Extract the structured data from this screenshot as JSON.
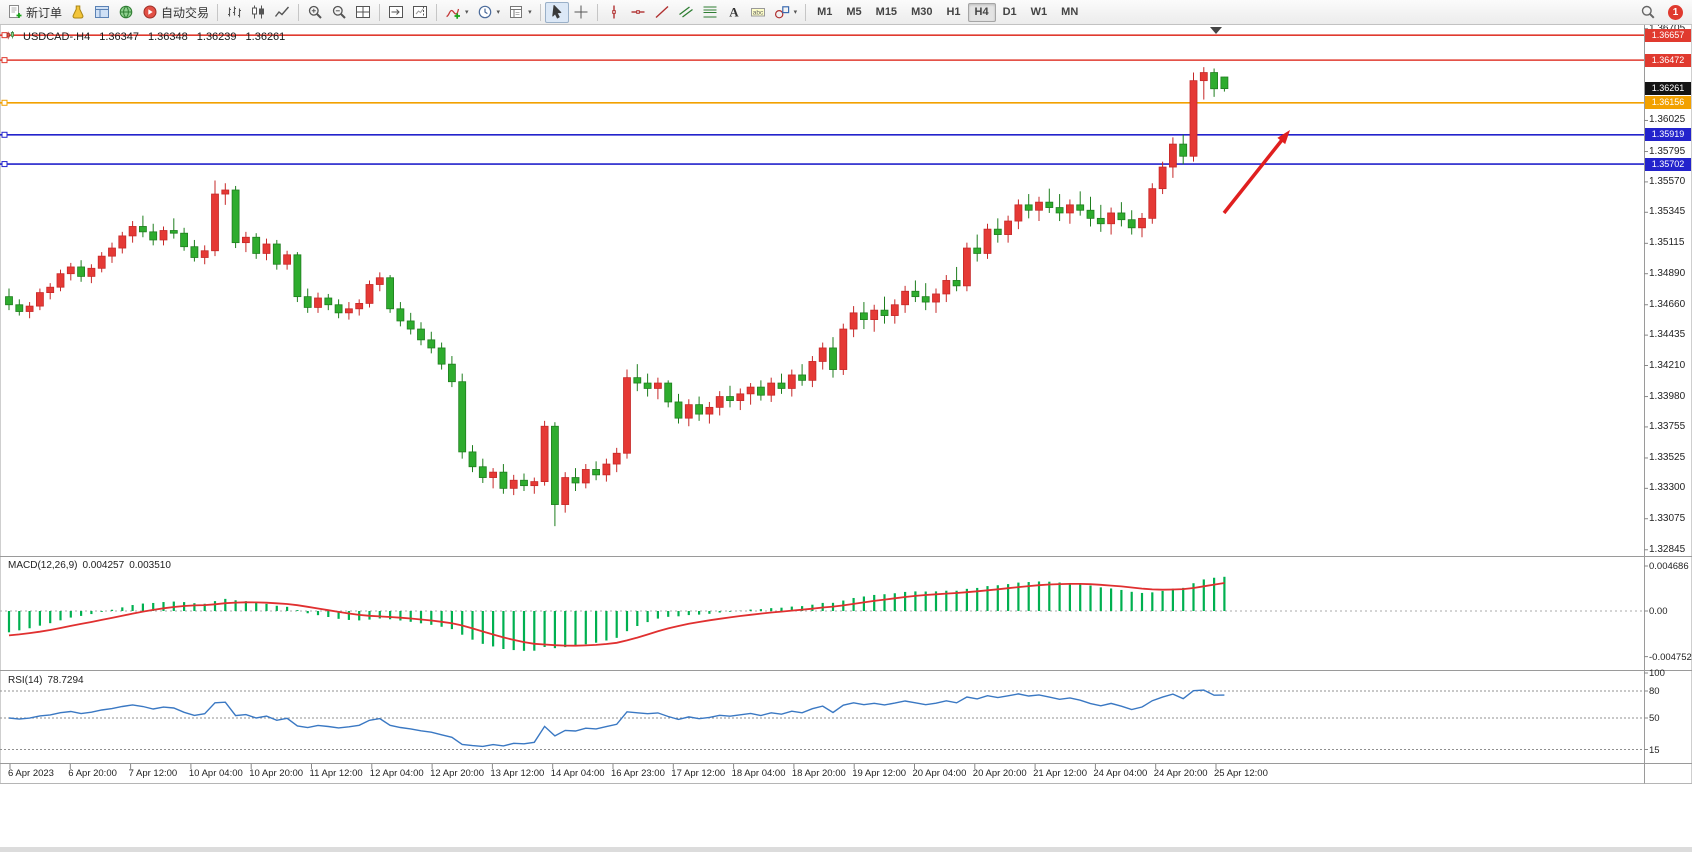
{
  "toolbar": {
    "groups": [
      [
        {
          "name": "new-order-button",
          "icon": "doc-plus",
          "label": "新订单"
        },
        {
          "name": "market-watch-button",
          "icon": "flask"
        },
        {
          "name": "data-window-button",
          "icon": "panel"
        },
        {
          "name": "navigator-button",
          "icon": "globe"
        },
        {
          "name": "autotrading-button",
          "icon": "autotrade",
          "label": "自动交易"
        }
      ],
      [
        {
          "name": "bar-chart-button",
          "icon": "bars"
        },
        {
          "name": "candlestick-chart-button",
          "icon": "candles"
        },
        {
          "name": "line-chart-button",
          "icon": "linechart"
        }
      ],
      [
        {
          "name": "zoom-in-button",
          "icon": "zoom-in"
        },
        {
          "name": "zoom-out-button",
          "icon": "zoom-out"
        },
        {
          "name": "tile-windows-button",
          "icon": "tile"
        }
      ],
      [
        {
          "name": "auto-scroll-button",
          "icon": "autoscroll"
        },
        {
          "name": "chart-shift-button",
          "icon": "chartshift"
        }
      ],
      [
        {
          "name": "indicators-button",
          "icon": "indicator",
          "caret": true
        },
        {
          "name": "periods-button",
          "icon": "clock",
          "caret": true
        },
        {
          "name": "templates-button",
          "icon": "template",
          "caret": true
        }
      ],
      [
        {
          "name": "cursor-button",
          "icon": "cursor",
          "active": true
        },
        {
          "name": "crosshair-button",
          "icon": "crosshair"
        }
      ],
      [
        {
          "name": "vertical-line-button",
          "icon": "vline"
        },
        {
          "name": "horizontal-line-button",
          "icon": "hline"
        },
        {
          "name": "trendline-button",
          "icon": "trendline"
        },
        {
          "name": "channel-button",
          "icon": "channel"
        },
        {
          "name": "fibonacci-button",
          "icon": "fibo"
        },
        {
          "name": "text-button",
          "icon": "text"
        },
        {
          "name": "label-button",
          "icon": "textlabel"
        },
        {
          "name": "arrows-button",
          "icon": "shapes",
          "caret": true
        }
      ]
    ],
    "timeframes": [
      {
        "label": "M1"
      },
      {
        "label": "M5"
      },
      {
        "label": "M15"
      },
      {
        "label": "M30"
      },
      {
        "label": "H1"
      },
      {
        "label": "H4",
        "active": true
      },
      {
        "label": "D1"
      },
      {
        "label": "W1"
      },
      {
        "label": "MN"
      }
    ],
    "right": {
      "notification_count": "1"
    }
  },
  "chart": {
    "symbol_timeframe": "USDCAD-.H4",
    "ohlc": {
      "open": "1.36347",
      "high": "1.36348",
      "low": "1.36239",
      "close": "1.36261"
    },
    "current_price": {
      "label": "1.36261",
      "color": "#141414"
    },
    "levels": [
      {
        "price": 1.36657,
        "label": "1.36657",
        "color": "#e03a2f"
      },
      {
        "price": 1.36472,
        "label": "1.36472",
        "color": "#e03a2f"
      },
      {
        "price": 1.36156,
        "label": "1.36156",
        "color": "#f2a100"
      },
      {
        "price": 1.35919,
        "label": "1.35919",
        "color": "#2323cc"
      },
      {
        "price": 1.35702,
        "label": "1.35702",
        "color": "#2323cc"
      }
    ],
    "axis_prices": [
      "1.36705",
      "1.36025",
      "1.35795",
      "1.35570",
      "1.35345",
      "1.35115",
      "1.34890",
      "1.34660",
      "1.34435",
      "1.34210",
      "1.33980",
      "1.33755",
      "1.33525",
      "1.33300",
      "1.33075",
      "1.32845"
    ],
    "time_labels": [
      "6 Apr 2023",
      "6 Apr 20:00",
      "7 Apr 12:00",
      "10 Apr 04:00",
      "10 Apr 20:00",
      "11 Apr 12:00",
      "12 Apr 04:00",
      "12 Apr 20:00",
      "13 Apr 12:00",
      "14 Apr 04:00",
      "16 Apr 23:00",
      "17 Apr 12:00",
      "18 Apr 04:00",
      "18 Apr 20:00",
      "19 Apr 12:00",
      "20 Apr 04:00",
      "20 Apr 20:00",
      "21 Apr 12:00",
      "24 Apr 04:00",
      "24 Apr 20:00",
      "25 Apr 12:00"
    ],
    "annotation_arrow_color": "#e01f1f"
  },
  "chart_data": {
    "type": "candlestick",
    "symbol": "USDCAD",
    "timeframe": "H4",
    "bull_color": "#e53935",
    "bull_edge": "#c62828",
    "bear_color": "#2eac2e",
    "bear_edge": "#1e7e1e",
    "candles": [
      [
        1.3472,
        1.3478,
        1.3462,
        1.3466
      ],
      [
        1.3466,
        1.347,
        1.3458,
        1.3461
      ],
      [
        1.3461,
        1.3468,
        1.3456,
        1.3465
      ],
      [
        1.3465,
        1.3478,
        1.3462,
        1.3475
      ],
      [
        1.3475,
        1.3482,
        1.347,
        1.3479
      ],
      [
        1.3479,
        1.3492,
        1.3476,
        1.3489
      ],
      [
        1.3489,
        1.3497,
        1.3484,
        1.3494
      ],
      [
        1.3494,
        1.3499,
        1.3483,
        1.3487
      ],
      [
        1.3487,
        1.3496,
        1.3482,
        1.3493
      ],
      [
        1.3493,
        1.3505,
        1.349,
        1.3502
      ],
      [
        1.3502,
        1.3512,
        1.3497,
        1.3508
      ],
      [
        1.3508,
        1.352,
        1.3504,
        1.3517
      ],
      [
        1.3517,
        1.3528,
        1.3512,
        1.3524
      ],
      [
        1.3524,
        1.3532,
        1.3516,
        1.352
      ],
      [
        1.352,
        1.3526,
        1.351,
        1.3514
      ],
      [
        1.3514,
        1.3524,
        1.351,
        1.3521
      ],
      [
        1.3521,
        1.353,
        1.3515,
        1.3519
      ],
      [
        1.3519,
        1.3523,
        1.3506,
        1.3509
      ],
      [
        1.3509,
        1.3514,
        1.3498,
        1.3501
      ],
      [
        1.3501,
        1.351,
        1.3496,
        1.3506
      ],
      [
        1.3506,
        1.3558,
        1.3502,
        1.3548
      ],
      [
        1.3548,
        1.3556,
        1.354,
        1.3551
      ],
      [
        1.3551,
        1.3554,
        1.3508,
        1.3512
      ],
      [
        1.3512,
        1.352,
        1.3505,
        1.3516
      ],
      [
        1.3516,
        1.3519,
        1.35,
        1.3504
      ],
      [
        1.3504,
        1.3515,
        1.3499,
        1.3511
      ],
      [
        1.3511,
        1.3514,
        1.3492,
        1.3496
      ],
      [
        1.3496,
        1.3506,
        1.3492,
        1.3503
      ],
      [
        1.3503,
        1.3505,
        1.3468,
        1.3472
      ],
      [
        1.3472,
        1.3478,
        1.346,
        1.3464
      ],
      [
        1.3464,
        1.3475,
        1.346,
        1.3471
      ],
      [
        1.3471,
        1.3474,
        1.3462,
        1.3466
      ],
      [
        1.3466,
        1.347,
        1.3456,
        1.346
      ],
      [
        1.346,
        1.3468,
        1.3455,
        1.3463
      ],
      [
        1.3463,
        1.347,
        1.3458,
        1.3467
      ],
      [
        1.3467,
        1.3484,
        1.3464,
        1.3481
      ],
      [
        1.3481,
        1.349,
        1.3476,
        1.3486
      ],
      [
        1.3486,
        1.3488,
        1.346,
        1.3463
      ],
      [
        1.3463,
        1.3468,
        1.345,
        1.3454
      ],
      [
        1.3454,
        1.346,
        1.3444,
        1.3448
      ],
      [
        1.3448,
        1.3453,
        1.3436,
        1.344
      ],
      [
        1.344,
        1.3446,
        1.343,
        1.3434
      ],
      [
        1.3434,
        1.3438,
        1.3418,
        1.3422
      ],
      [
        1.3422,
        1.3428,
        1.3405,
        1.3409
      ],
      [
        1.3409,
        1.3415,
        1.3352,
        1.3357
      ],
      [
        1.3357,
        1.3362,
        1.3342,
        1.3346
      ],
      [
        1.3346,
        1.3352,
        1.3334,
        1.3338
      ],
      [
        1.3338,
        1.3345,
        1.333,
        1.3342
      ],
      [
        1.3342,
        1.3348,
        1.3326,
        1.333
      ],
      [
        1.333,
        1.334,
        1.3325,
        1.3336
      ],
      [
        1.3336,
        1.3341,
        1.3328,
        1.3332
      ],
      [
        1.3332,
        1.3338,
        1.3326,
        1.3335
      ],
      [
        1.3335,
        1.338,
        1.3332,
        1.3376
      ],
      [
        1.3376,
        1.3379,
        1.3302,
        1.3318
      ],
      [
        1.3318,
        1.3342,
        1.3312,
        1.3338
      ],
      [
        1.3338,
        1.3345,
        1.3328,
        1.3334
      ],
      [
        1.3334,
        1.3348,
        1.333,
        1.3344
      ],
      [
        1.3344,
        1.335,
        1.3336,
        1.334
      ],
      [
        1.334,
        1.3352,
        1.3335,
        1.3348
      ],
      [
        1.3348,
        1.336,
        1.3342,
        1.3356
      ],
      [
        1.3356,
        1.3418,
        1.3352,
        1.3412
      ],
      [
        1.3412,
        1.3422,
        1.3402,
        1.3408
      ],
      [
        1.3408,
        1.3415,
        1.3398,
        1.3404
      ],
      [
        1.3404,
        1.3412,
        1.3396,
        1.3408
      ],
      [
        1.3408,
        1.341,
        1.339,
        1.3394
      ],
      [
        1.3394,
        1.34,
        1.3378,
        1.3382
      ],
      [
        1.3382,
        1.3396,
        1.3376,
        1.3392
      ],
      [
        1.3392,
        1.3398,
        1.338,
        1.3385
      ],
      [
        1.3385,
        1.3394,
        1.3378,
        1.339
      ],
      [
        1.339,
        1.3402,
        1.3384,
        1.3398
      ],
      [
        1.3398,
        1.3406,
        1.339,
        1.3395
      ],
      [
        1.3395,
        1.3404,
        1.3388,
        1.34
      ],
      [
        1.34,
        1.3408,
        1.3392,
        1.3405
      ],
      [
        1.3405,
        1.341,
        1.3395,
        1.3399
      ],
      [
        1.3399,
        1.3412,
        1.3394,
        1.3408
      ],
      [
        1.3408,
        1.3415,
        1.34,
        1.3404
      ],
      [
        1.3404,
        1.3418,
        1.3398,
        1.3414
      ],
      [
        1.3414,
        1.3422,
        1.3406,
        1.341
      ],
      [
        1.341,
        1.3428,
        1.3405,
        1.3424
      ],
      [
        1.3424,
        1.3438,
        1.3418,
        1.3434
      ],
      [
        1.3434,
        1.3442,
        1.3412,
        1.3418
      ],
      [
        1.3418,
        1.3452,
        1.3414,
        1.3448
      ],
      [
        1.3448,
        1.3465,
        1.3442,
        1.346
      ],
      [
        1.346,
        1.3468,
        1.3448,
        1.3455
      ],
      [
        1.3455,
        1.3466,
        1.3446,
        1.3462
      ],
      [
        1.3462,
        1.3472,
        1.3452,
        1.3458
      ],
      [
        1.3458,
        1.347,
        1.3452,
        1.3466
      ],
      [
        1.3466,
        1.348,
        1.346,
        1.3476
      ],
      [
        1.3476,
        1.3484,
        1.3468,
        1.3472
      ],
      [
        1.3472,
        1.3482,
        1.3462,
        1.3468
      ],
      [
        1.3468,
        1.3478,
        1.346,
        1.3474
      ],
      [
        1.3474,
        1.3488,
        1.3468,
        1.3484
      ],
      [
        1.3484,
        1.3494,
        1.3476,
        1.348
      ],
      [
        1.348,
        1.3512,
        1.3476,
        1.3508
      ],
      [
        1.3508,
        1.3518,
        1.3498,
        1.3504
      ],
      [
        1.3504,
        1.3526,
        1.35,
        1.3522
      ],
      [
        1.3522,
        1.353,
        1.3512,
        1.3518
      ],
      [
        1.3518,
        1.3532,
        1.3512,
        1.3528
      ],
      [
        1.3528,
        1.3544,
        1.3522,
        1.354
      ],
      [
        1.354,
        1.3548,
        1.353,
        1.3536
      ],
      [
        1.3536,
        1.3546,
        1.3528,
        1.3542
      ],
      [
        1.3542,
        1.3552,
        1.3534,
        1.3538
      ],
      [
        1.3538,
        1.3548,
        1.3528,
        1.3534
      ],
      [
        1.3534,
        1.3544,
        1.3526,
        1.354
      ],
      [
        1.354,
        1.355,
        1.3532,
        1.3536
      ],
      [
        1.3536,
        1.3546,
        1.3524,
        1.353
      ],
      [
        1.353,
        1.354,
        1.352,
        1.3526
      ],
      [
        1.3526,
        1.3538,
        1.3518,
        1.3534
      ],
      [
        1.3534,
        1.3542,
        1.3524,
        1.3529
      ],
      [
        1.3529,
        1.3536,
        1.3518,
        1.3523
      ],
      [
        1.3523,
        1.3534,
        1.3516,
        1.353
      ],
      [
        1.353,
        1.3556,
        1.3526,
        1.3552
      ],
      [
        1.3552,
        1.3572,
        1.3548,
        1.3568
      ],
      [
        1.3568,
        1.359,
        1.356,
        1.3585
      ],
      [
        1.3585,
        1.3592,
        1.357,
        1.3576
      ],
      [
        1.3576,
        1.3638,
        1.3572,
        1.3632
      ],
      [
        1.3632,
        1.3642,
        1.3618,
        1.3638
      ],
      [
        1.3638,
        1.3641,
        1.362,
        1.3626
      ],
      [
        1.36347,
        1.36348,
        1.36239,
        1.36261
      ]
    ]
  },
  "indicators": {
    "macd": {
      "label": "MACD(12,26,9)",
      "value": "0.004257",
      "signal_value": "0.003510",
      "params": {
        "fast": 12,
        "slow": 26,
        "signal": 9
      },
      "axis_labels": [
        "0.004686",
        "0.00",
        "-0.004752"
      ],
      "axis_values": [
        0.004686,
        0,
        -0.004752
      ],
      "histogram_color": "#00b050",
      "signal_color": "#e03030"
    },
    "rsi": {
      "label": "RSI(14)",
      "value": "78.7294",
      "period": 14,
      "levels": [
        80,
        50,
        15
      ],
      "axis_labels": [
        "100",
        "80",
        "50",
        "15"
      ],
      "axis_values": [
        100,
        80,
        50,
        15
      ],
      "line_color": "#3a78c3"
    }
  }
}
